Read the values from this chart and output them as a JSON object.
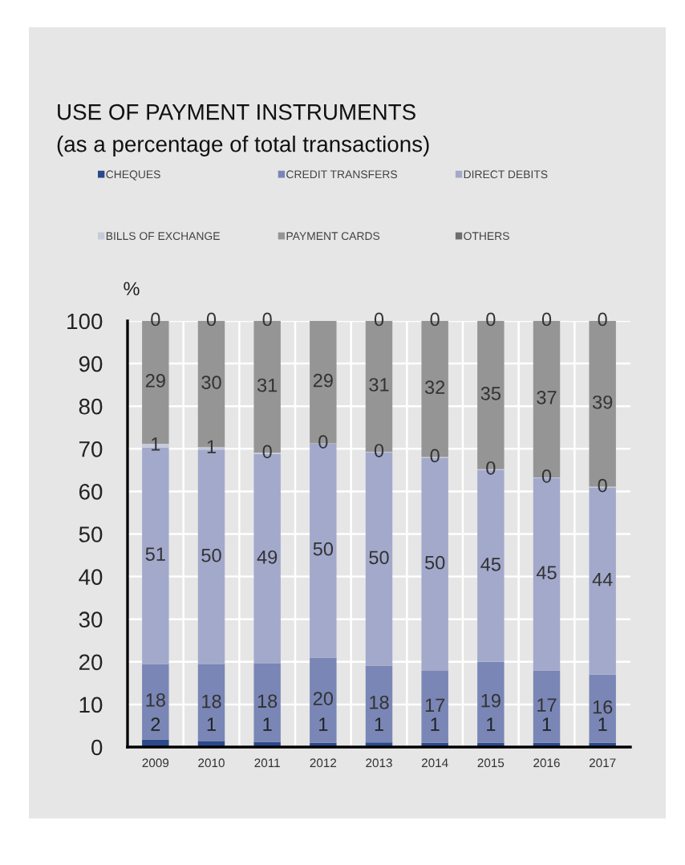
{
  "chart_data": {
    "type": "bar",
    "stacked": true,
    "title": "USE OF PAYMENT INSTRUMENTS",
    "subtitle": "(as a percentage of total transactions)",
    "ylabel": "%",
    "categories": [
      "2009",
      "2010",
      "2011",
      "2012",
      "2013",
      "2014",
      "2015",
      "2016",
      "2017"
    ],
    "ylim": [
      0,
      100
    ],
    "yticks": [
      0,
      10,
      20,
      30,
      40,
      50,
      60,
      70,
      80,
      90,
      100
    ],
    "grid": true,
    "legend": "top",
    "series": [
      {
        "name": "CHEQUES",
        "color": "#2b4a8b",
        "values": [
          1.8,
          1.3,
          1.2,
          1.0,
          1.1,
          1.0,
          1.0,
          1.0,
          1.0
        ],
        "value_labels": [
          "2",
          "1",
          "1",
          "1",
          "1",
          "1",
          "1",
          "1",
          "1"
        ]
      },
      {
        "name": "CREDIT TRANSFERS",
        "color": "#7a86b5",
        "values": [
          17.7,
          18.1,
          18.4,
          20.0,
          18.0,
          16.9,
          19.0,
          17.0,
          16.0
        ],
        "value_labels": [
          "18",
          "18",
          "18",
          "20",
          "18",
          "17",
          "19",
          "17",
          "16"
        ]
      },
      {
        "name": "DIRECT DEBITS",
        "color": "#a3a9cb",
        "values": [
          50.8,
          50.4,
          49.2,
          50.2,
          50.0,
          50.0,
          45.0,
          45.1,
          43.9
        ],
        "value_labels": [
          "51",
          "50",
          "49",
          "50",
          "50",
          "50",
          "45",
          "45",
          "44"
        ]
      },
      {
        "name": "BILLS OF EXCHANGE",
        "color": "#c6cada",
        "values": [
          0.9,
          0.6,
          0.3,
          0.1,
          0.2,
          0.2,
          0.2,
          0.2,
          0.2
        ],
        "value_labels": [
          "1",
          "1",
          "0",
          "0",
          "0",
          "0",
          "0",
          "0",
          "0"
        ]
      },
      {
        "name": "PAYMENT CARDS",
        "color": "#959595",
        "values": [
          28.8,
          29.6,
          30.9,
          28.7,
          30.7,
          31.9,
          34.8,
          36.7,
          38.9
        ],
        "value_labels": [
          "29",
          "30",
          "31",
          "29",
          "31",
          "32",
          "35",
          "37",
          "39"
        ]
      },
      {
        "name": "OTHERS",
        "color": "#6e6e6e",
        "values": [
          0,
          0,
          0,
          0,
          0,
          0,
          0,
          0,
          0
        ],
        "value_labels": [
          "0",
          "0",
          "0",
          null,
          "0",
          "0",
          "0",
          "0",
          "0"
        ]
      }
    ]
  }
}
